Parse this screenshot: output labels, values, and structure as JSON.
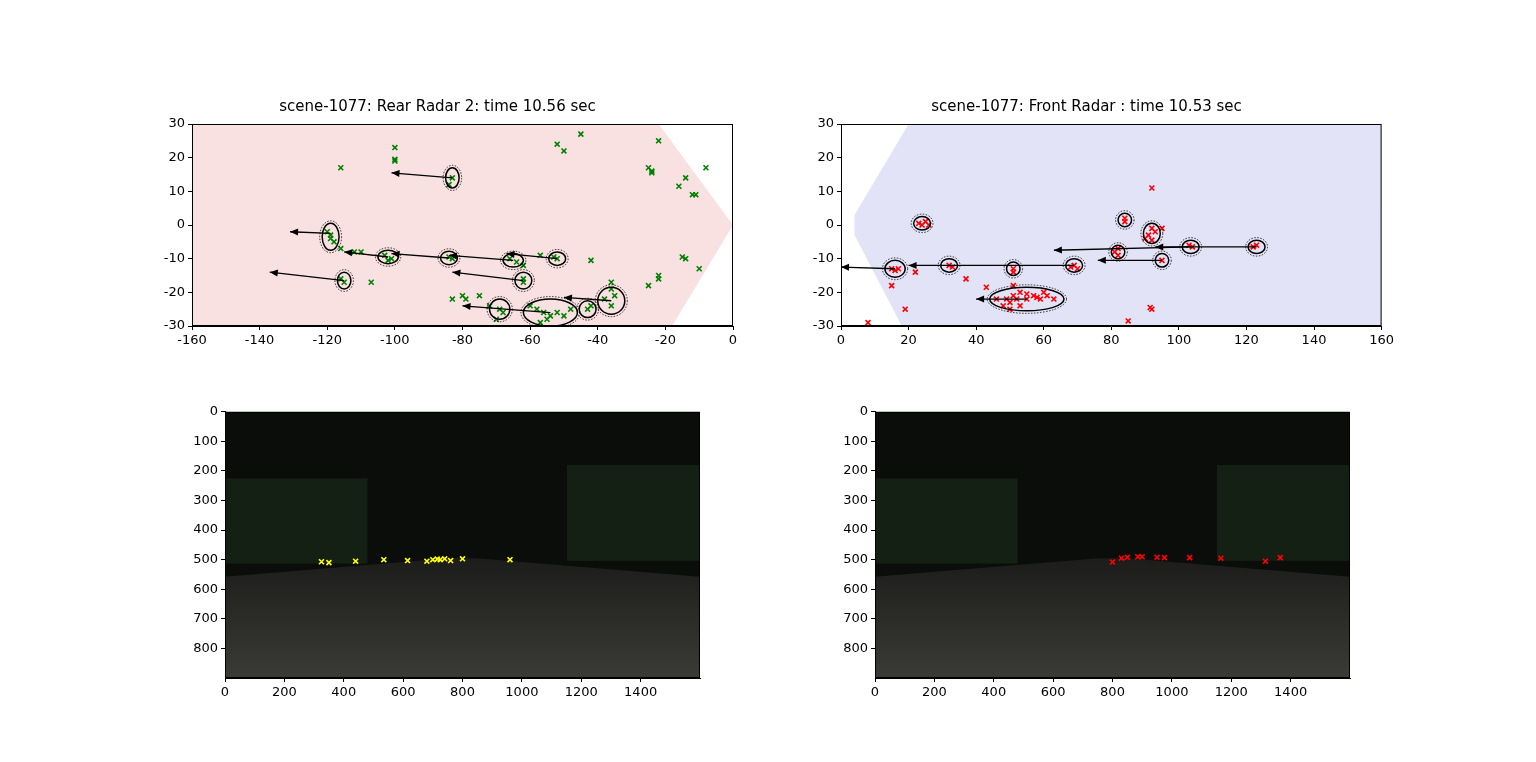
{
  "chart_data": [
    {
      "type": "scatter",
      "title": "scene-1077: Rear Radar 2: time 10.56 sec",
      "xlim": [
        -160,
        0
      ],
      "ylim": [
        -30,
        30
      ],
      "xticks": [
        -160,
        -140,
        -120,
        -100,
        -80,
        -60,
        -40,
        -20,
        0
      ],
      "yticks": [
        -30,
        -20,
        -10,
        0,
        10,
        20,
        30
      ],
      "grid": false,
      "color": "#008000",
      "marker": "x",
      "coverage": {
        "color": "#f4c4c4",
        "polygon": [
          [
            -160,
            -30
          ],
          [
            -160,
            30
          ],
          [
            -22,
            30
          ],
          [
            0,
            0
          ],
          [
            -18,
            -30
          ]
        ]
      },
      "points": [
        [
          -83,
          14
        ],
        [
          -84,
          12
        ],
        [
          -100,
          23
        ],
        [
          -100,
          19.5
        ],
        [
          -100,
          19
        ],
        [
          -116,
          17
        ],
        [
          -52,
          24
        ],
        [
          -50,
          22
        ],
        [
          -45,
          27
        ],
        [
          -25,
          17
        ],
        [
          -24,
          16
        ],
        [
          -24,
          15.5
        ],
        [
          -22,
          25
        ],
        [
          -16,
          11.5
        ],
        [
          -14,
          14
        ],
        [
          -12,
          9
        ],
        [
          -11,
          9
        ],
        [
          -8,
          17
        ],
        [
          -10,
          -13
        ],
        [
          -14,
          -10
        ],
        [
          -15,
          -9.5
        ],
        [
          -22,
          -15
        ],
        [
          -22,
          -16
        ],
        [
          -25,
          -18
        ],
        [
          -42,
          -10.5
        ],
        [
          -36,
          -17
        ],
        [
          -36,
          -19
        ],
        [
          -120,
          -2
        ],
        [
          -119,
          -3
        ],
        [
          -119,
          -4
        ],
        [
          -118,
          -5
        ],
        [
          -116,
          -7
        ],
        [
          -112,
          -8
        ],
        [
          -110,
          -8
        ],
        [
          -107,
          -17
        ],
        [
          -103,
          -9
        ],
        [
          -101,
          -10
        ],
        [
          -102,
          -10.5
        ],
        [
          -84,
          -9.5
        ],
        [
          -83,
          -10
        ],
        [
          -66,
          -10
        ],
        [
          -64,
          -11
        ],
        [
          -62,
          -12
        ],
        [
          -53,
          -9.5
        ],
        [
          -52,
          -10
        ],
        [
          -57,
          -9
        ],
        [
          -62,
          -16
        ],
        [
          -62,
          -17
        ],
        [
          -116,
          -16
        ],
        [
          -115,
          -17
        ],
        [
          -80,
          -21
        ],
        [
          -79,
          -22
        ],
        [
          -83,
          -22
        ],
        [
          -75,
          -21
        ],
        [
          -69,
          -25
        ],
        [
          -68,
          -26
        ],
        [
          -72,
          -24
        ],
        [
          -70,
          -28
        ],
        [
          -60,
          -24
        ],
        [
          -58,
          -25
        ],
        [
          -56,
          -26
        ],
        [
          -54,
          -27
        ],
        [
          -52,
          -26
        ],
        [
          -50,
          -27
        ],
        [
          -55,
          -28
        ],
        [
          -57,
          -29
        ],
        [
          -48,
          -25
        ],
        [
          -43,
          -25
        ],
        [
          -42,
          -24
        ],
        [
          -38,
          -22
        ],
        [
          -35,
          -21
        ],
        [
          -36,
          -24
        ]
      ],
      "clusters": [
        {
          "x": -83,
          "y": 14,
          "width": 4,
          "height": 6
        },
        {
          "x": -119,
          "y": -3.5,
          "width": 5,
          "height": 8
        },
        {
          "x": -102,
          "y": -9.5,
          "width": 6,
          "height": 4
        },
        {
          "x": -84,
          "y": -9.8,
          "width": 5,
          "height": 4
        },
        {
          "x": -65,
          "y": -10.5,
          "width": 6,
          "height": 4
        },
        {
          "x": -52,
          "y": -10,
          "width": 5,
          "height": 4
        },
        {
          "x": -62,
          "y": -16.5,
          "width": 5,
          "height": 5
        },
        {
          "x": -115,
          "y": -16.5,
          "width": 4,
          "height": 5
        },
        {
          "x": -69,
          "y": -25,
          "width": 6,
          "height": 6
        },
        {
          "x": -54,
          "y": -26,
          "width": 16,
          "height": 8
        },
        {
          "x": -43,
          "y": -25,
          "width": 5,
          "height": 5
        },
        {
          "x": -36,
          "y": -22.5,
          "width": 8,
          "height": 8
        }
      ],
      "arrows": [
        {
          "x0": -83,
          "y0": 14,
          "x1": -101,
          "y1": 15.5
        },
        {
          "x0": -119,
          "y0": -2.5,
          "x1": -131,
          "y1": -2
        },
        {
          "x0": -65,
          "y0": -10.5,
          "x1": -84,
          "y1": -9
        },
        {
          "x0": -84,
          "y0": -9.8,
          "x1": -101,
          "y1": -8.5
        },
        {
          "x0": -102,
          "y0": -9.5,
          "x1": -115,
          "y1": -8
        },
        {
          "x0": -52,
          "y0": -10,
          "x1": -67,
          "y1": -8.5
        },
        {
          "x0": -62,
          "y0": -16.5,
          "x1": -83,
          "y1": -14
        },
        {
          "x0": -115,
          "y0": -16.5,
          "x1": -137,
          "y1": -14
        },
        {
          "x0": -54,
          "y0": -26,
          "x1": -80,
          "y1": -24
        },
        {
          "x0": -36,
          "y0": -22.5,
          "x1": -50,
          "y1": -21.5
        }
      ]
    },
    {
      "type": "scatter",
      "title": "scene-1077: Front Radar : time 10.53 sec",
      "xlim": [
        0,
        160
      ],
      "ylim": [
        -30,
        30
      ],
      "xticks": [
        0,
        20,
        40,
        60,
        80,
        100,
        120,
        140,
        160
      ],
      "yticks": [
        -30,
        -20,
        -10,
        0,
        10,
        20,
        30
      ],
      "grid": false,
      "color": "#ff0000",
      "marker": "x",
      "coverage": {
        "color": "#c8c8f0",
        "polygon": [
          [
            20,
            30
          ],
          [
            160,
            30
          ],
          [
            160,
            -30
          ],
          [
            18,
            -30
          ],
          [
            4,
            -3
          ],
          [
            4,
            3
          ]
        ]
      },
      "points": [
        [
          92,
          11
        ],
        [
          91,
          -3
        ],
        [
          92,
          -1
        ],
        [
          93,
          -2
        ],
        [
          95,
          -1
        ],
        [
          90,
          -4
        ],
        [
          92,
          -4.5
        ],
        [
          91.5,
          -24.5
        ],
        [
          92,
          -25
        ],
        [
          85,
          -28.5
        ],
        [
          84,
          1
        ],
        [
          84,
          2
        ],
        [
          24,
          0
        ],
        [
          25,
          1
        ],
        [
          23,
          0.5
        ],
        [
          26,
          0
        ],
        [
          82,
          -7
        ],
        [
          81,
          -8
        ],
        [
          82,
          -9
        ],
        [
          95,
          -10.5
        ],
        [
          103,
          -6
        ],
        [
          104,
          -6.5
        ],
        [
          123,
          -6
        ],
        [
          122,
          -6.5
        ],
        [
          69,
          -12
        ],
        [
          68,
          -12.5
        ],
        [
          70,
          -13
        ],
        [
          51,
          -13
        ],
        [
          51,
          -14
        ],
        [
          32,
          -12
        ],
        [
          33,
          -12.5
        ],
        [
          15,
          -13
        ],
        [
          16,
          -13.5
        ],
        [
          17,
          -13
        ],
        [
          15,
          -18
        ],
        [
          22,
          -14
        ],
        [
          19,
          -25
        ],
        [
          8,
          -29
        ],
        [
          37,
          -16
        ],
        [
          43,
          -18.5
        ],
        [
          49,
          -22
        ],
        [
          50,
          -23
        ],
        [
          51,
          -21
        ],
        [
          52,
          -22
        ],
        [
          53,
          -24
        ],
        [
          55,
          -22
        ],
        [
          57,
          -21
        ],
        [
          58,
          -21.5
        ],
        [
          60,
          -20
        ],
        [
          59,
          -22
        ],
        [
          61,
          -21
        ],
        [
          48,
          -24
        ],
        [
          50,
          -25
        ],
        [
          53,
          -20
        ],
        [
          55,
          -20.5
        ],
        [
          46,
          -22
        ],
        [
          63,
          -22
        ],
        [
          51,
          -18
        ]
      ],
      "clusters": [
        {
          "x": 24,
          "y": 0.5,
          "width": 5,
          "height": 4
        },
        {
          "x": 84,
          "y": 1.5,
          "width": 4,
          "height": 4
        },
        {
          "x": 92,
          "y": -2.5,
          "width": 5,
          "height": 6
        },
        {
          "x": 82,
          "y": -8,
          "width": 4,
          "height": 4
        },
        {
          "x": 95,
          "y": -10.5,
          "width": 4,
          "height": 4
        },
        {
          "x": 103.5,
          "y": -6.5,
          "width": 5,
          "height": 4
        },
        {
          "x": 123,
          "y": -6.5,
          "width": 5,
          "height": 4
        },
        {
          "x": 69,
          "y": -12,
          "width": 5,
          "height": 4
        },
        {
          "x": 51,
          "y": -13,
          "width": 4,
          "height": 4
        },
        {
          "x": 32,
          "y": -12,
          "width": 5,
          "height": 4
        },
        {
          "x": 16,
          "y": -13,
          "width": 6,
          "height": 5
        },
        {
          "x": 55,
          "y": -22,
          "width": 22,
          "height": 7
        }
      ],
      "arrows": [
        {
          "x0": 123,
          "y0": -6.5,
          "x1": 93,
          "y1": -6.5
        },
        {
          "x0": 103.5,
          "y0": -6.5,
          "x1": 63,
          "y1": -7.5
        },
        {
          "x0": 95,
          "y0": -10.5,
          "x1": 76,
          "y1": -10.5
        },
        {
          "x0": 69,
          "y0": -12,
          "x1": 20,
          "y1": -12
        },
        {
          "x0": 16,
          "y0": -13,
          "x1": 0,
          "y1": -12.5
        },
        {
          "x0": 55,
          "y0": -22,
          "x1": 40,
          "y1": -22
        }
      ]
    },
    {
      "type": "scatter",
      "xlim": [
        0,
        1600
      ],
      "ylim": [
        900,
        0
      ],
      "xticks": [
        0,
        200,
        400,
        600,
        800,
        1000,
        1200,
        1400
      ],
      "yticks": [
        0,
        100,
        200,
        300,
        400,
        500,
        600,
        700,
        800
      ],
      "grid": false,
      "color": "#ffff00",
      "marker": "x",
      "points": [
        [
          325,
          507
        ],
        [
          350,
          510
        ],
        [
          440,
          505
        ],
        [
          535,
          500
        ],
        [
          615,
          503
        ],
        [
          680,
          505
        ],
        [
          700,
          500
        ],
        [
          715,
          498
        ],
        [
          725,
          500
        ],
        [
          740,
          497
        ],
        [
          760,
          503
        ],
        [
          800,
          497
        ],
        [
          960,
          500
        ]
      ]
    },
    {
      "type": "scatter",
      "xlim": [
        0,
        1600
      ],
      "ylim": [
        900,
        0
      ],
      "xticks": [
        0,
        200,
        400,
        600,
        800,
        1000,
        1200,
        1400
      ],
      "yticks": [
        0,
        100,
        200,
        300,
        400,
        500,
        600,
        700,
        800
      ],
      "grid": false,
      "color": "#ff0000",
      "marker": "x",
      "points": [
        [
          800,
          508
        ],
        [
          830,
          495
        ],
        [
          850,
          492
        ],
        [
          885,
          490
        ],
        [
          900,
          490
        ],
        [
          950,
          492
        ],
        [
          975,
          493
        ],
        [
          1060,
          493
        ],
        [
          1165,
          495
        ],
        [
          1315,
          505
        ],
        [
          1365,
          493
        ]
      ]
    }
  ]
}
